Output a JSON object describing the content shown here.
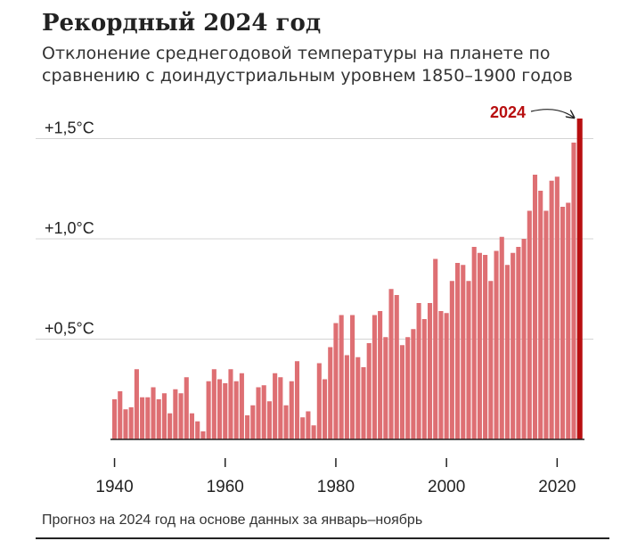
{
  "header": {
    "title": "Рекордный 2024 год",
    "subtitle": "Отклонение среднегодовой температуры на планете по сравнению с доиндустриальным уровнем 1850–1900 годов"
  },
  "footer": {
    "note": "Прогноз на 2024 год на основе данных за январь–ноябрь"
  },
  "colors": {
    "bar": "#de6f73",
    "highlight": "#b80f10",
    "grid": "#d4d4d4",
    "axis": "#222222",
    "text": "#222222"
  },
  "chart_data": {
    "type": "bar",
    "title": "Рекордный 2024 год",
    "subtitle": "Отклонение среднегодовой температуры на планете по сравнению с доиндустриальным уровнем 1850–1900 годов",
    "xlabel": "",
    "ylabel": "",
    "ylim": [
      0,
      1.6
    ],
    "y_ticks": [
      0.5,
      1.0,
      1.5
    ],
    "y_tick_labels": [
      "+0,5°C",
      "+1,0°C",
      "+1,5°C"
    ],
    "x_ticks": [
      1940,
      1960,
      1980,
      2000,
      2020
    ],
    "x_tick_labels": [
      "1940",
      "1960",
      "1980",
      "2000",
      "2020"
    ],
    "grid": true,
    "annotation": {
      "year": 2024,
      "text": "2024"
    },
    "highlight_year": 2024,
    "categories": [
      1940,
      1941,
      1942,
      1943,
      1944,
      1945,
      1946,
      1947,
      1948,
      1949,
      1950,
      1951,
      1952,
      1953,
      1954,
      1955,
      1956,
      1957,
      1958,
      1959,
      1960,
      1961,
      1962,
      1963,
      1964,
      1965,
      1966,
      1967,
      1968,
      1969,
      1970,
      1971,
      1972,
      1973,
      1974,
      1975,
      1976,
      1977,
      1978,
      1979,
      1980,
      1981,
      1982,
      1983,
      1984,
      1985,
      1986,
      1987,
      1988,
      1989,
      1990,
      1991,
      1992,
      1993,
      1994,
      1995,
      1996,
      1997,
      1998,
      1999,
      2000,
      2001,
      2002,
      2003,
      2004,
      2005,
      2006,
      2007,
      2008,
      2009,
      2010,
      2011,
      2012,
      2013,
      2014,
      2015,
      2016,
      2017,
      2018,
      2019,
      2020,
      2021,
      2022,
      2023,
      2024
    ],
    "values": [
      0.2,
      0.24,
      0.15,
      0.16,
      0.35,
      0.21,
      0.21,
      0.26,
      0.2,
      0.23,
      0.13,
      0.25,
      0.23,
      0.31,
      0.13,
      0.09,
      0.04,
      0.29,
      0.35,
      0.3,
      0.28,
      0.35,
      0.29,
      0.33,
      0.12,
      0.17,
      0.26,
      0.27,
      0.19,
      0.33,
      0.31,
      0.17,
      0.29,
      0.39,
      0.11,
      0.14,
      0.07,
      0.38,
      0.3,
      0.46,
      0.58,
      0.62,
      0.42,
      0.62,
      0.41,
      0.36,
      0.48,
      0.62,
      0.64,
      0.51,
      0.75,
      0.72,
      0.47,
      0.51,
      0.55,
      0.68,
      0.6,
      0.68,
      0.9,
      0.64,
      0.63,
      0.79,
      0.88,
      0.87,
      0.79,
      0.96,
      0.93,
      0.92,
      0.79,
      0.94,
      1.01,
      0.87,
      0.93,
      0.96,
      1.0,
      1.14,
      1.32,
      1.24,
      1.14,
      1.29,
      1.31,
      1.16,
      1.18,
      1.48,
      1.6
    ]
  }
}
